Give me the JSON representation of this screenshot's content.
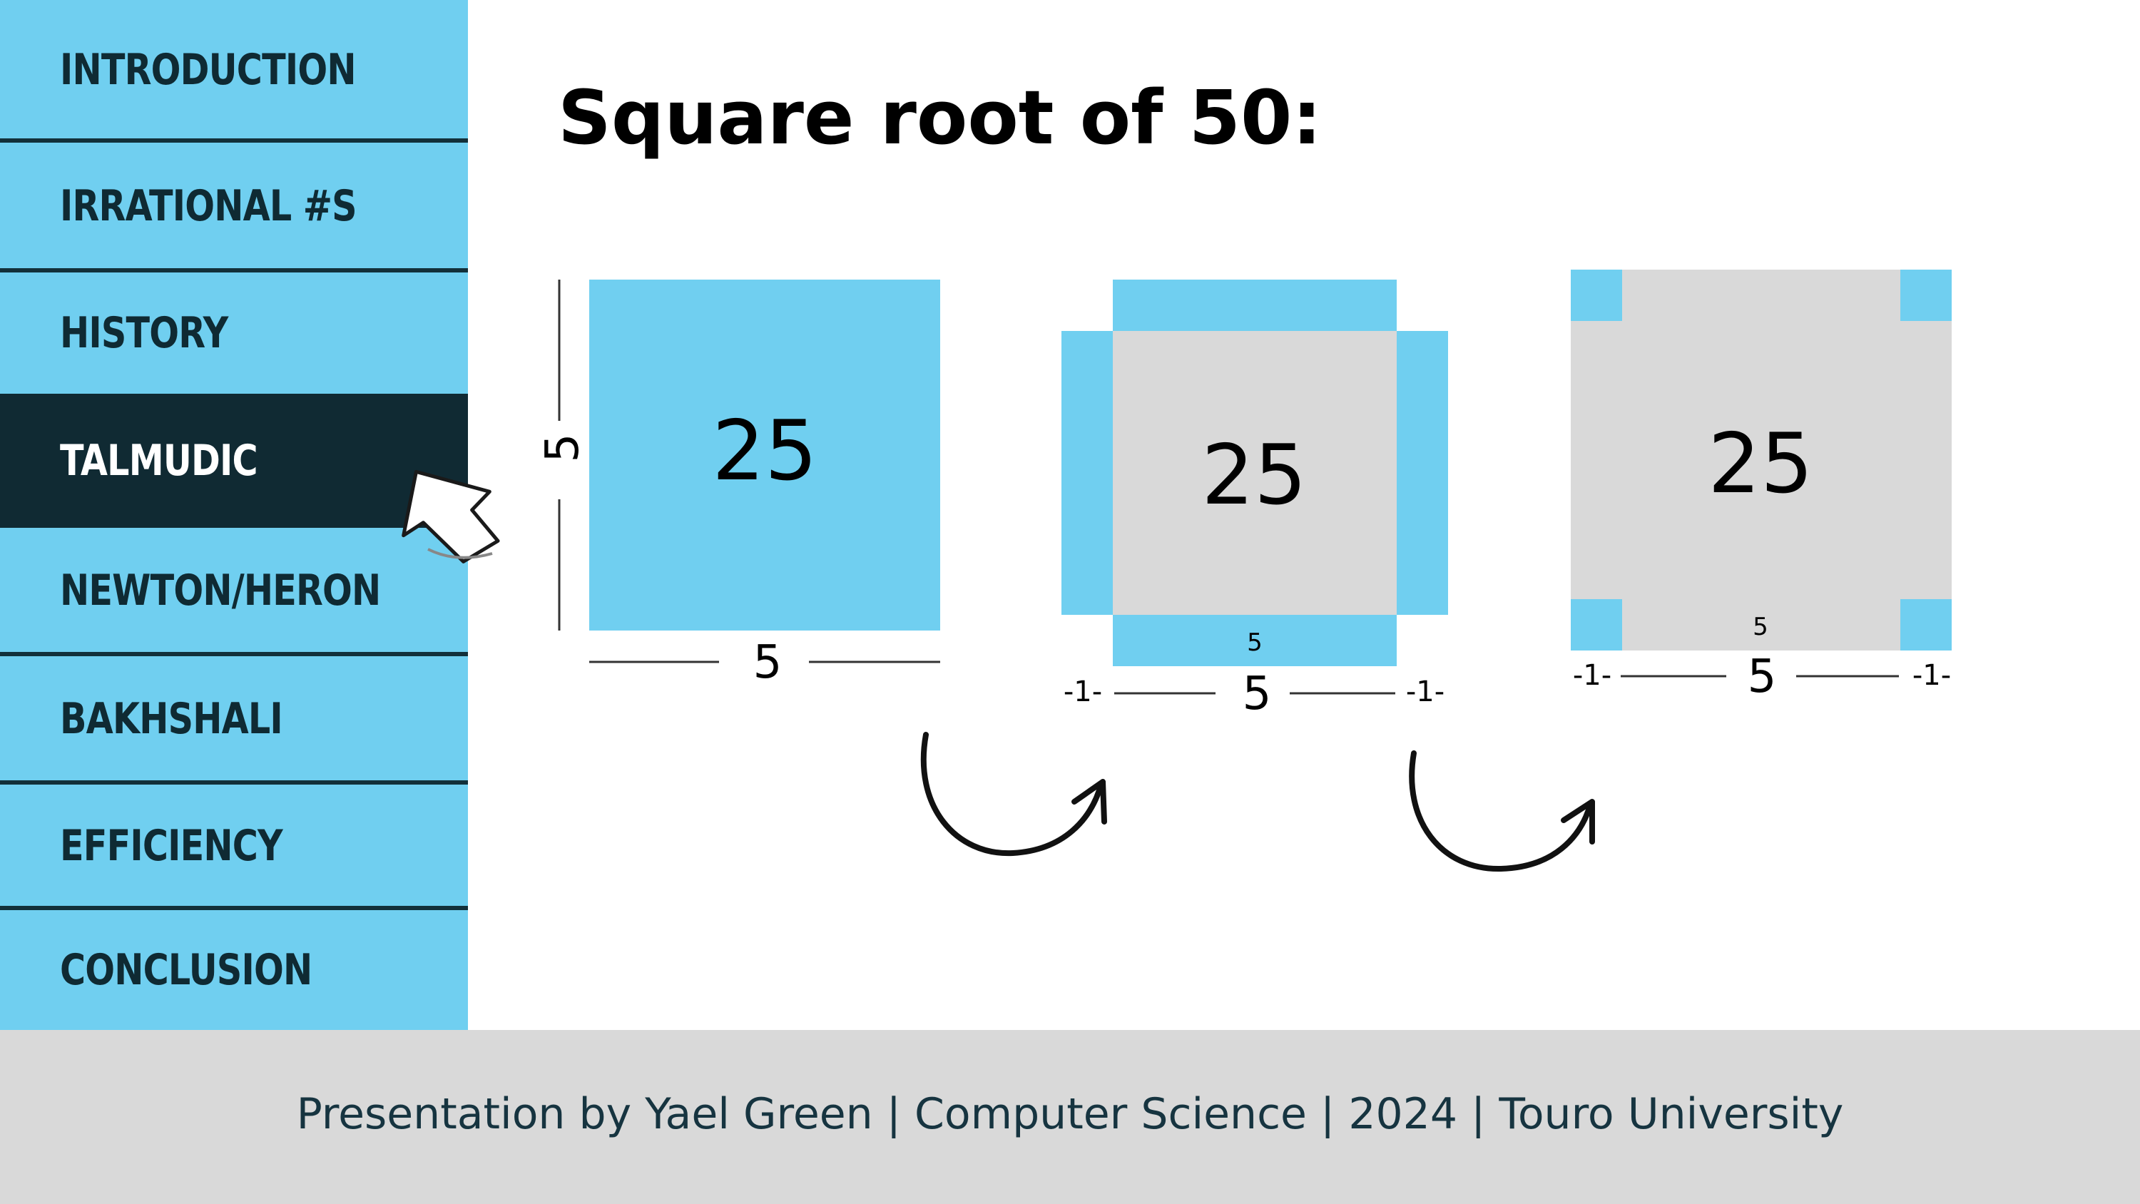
{
  "sidebar": {
    "items": [
      {
        "label": "INTRODUCTION",
        "active": false
      },
      {
        "label": "IRRATIONAL #S",
        "active": false
      },
      {
        "label": "HISTORY",
        "active": false
      },
      {
        "label": "TALMUDIC",
        "active": true
      },
      {
        "label": "NEWTON/HERON",
        "active": false
      },
      {
        "label": "BAKHSHALI",
        "active": false
      },
      {
        "label": "EFFICIENCY",
        "active": false
      },
      {
        "label": "CONCLUSION",
        "active": false
      }
    ]
  },
  "slide": {
    "title": "Square root of 50:",
    "diagram": {
      "step1": {
        "area": "25",
        "side_left": "5",
        "side_bottom": "5"
      },
      "step2": {
        "area": "25",
        "strip_label": "5",
        "side_bottom": "5",
        "ext_left": "-1-",
        "ext_right": "-1-"
      },
      "step3": {
        "area": "25",
        "strip_label": "5",
        "side_bottom": "5",
        "ext_left": "-1-",
        "ext_right": "-1-"
      }
    }
  },
  "footer": {
    "text": "Presentation by Yael Green |  Computer Science | 2024 | Touro University"
  },
  "colors": {
    "accent": "#70CFF0",
    "active_nav": "#102A33",
    "square_gray": "#D9D9D9",
    "footer_bg": "#D9D9D9"
  },
  "icons": [
    "cursor-arrow-icon",
    "curved-arrow-icon"
  ]
}
